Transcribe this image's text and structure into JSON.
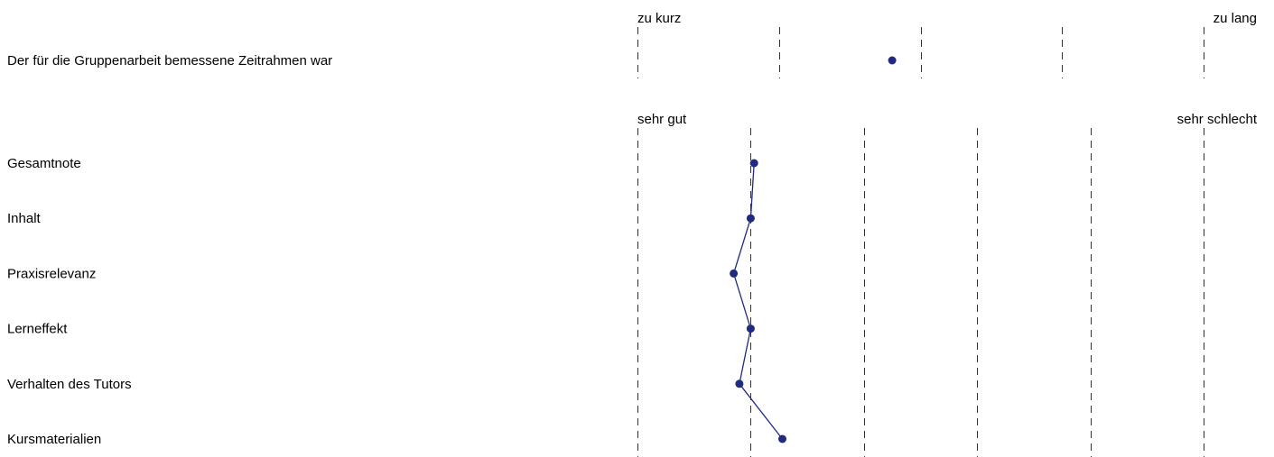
{
  "colors": {
    "marker": "#1f2a80",
    "line": "#1f2a80",
    "grid": "#333333",
    "text": "#000000"
  },
  "chart_data": [
    {
      "type": "scatter",
      "title": "",
      "scale_left": "zu kurz",
      "scale_right": "zu lang",
      "xlim": [
        1,
        5
      ],
      "ticks": [
        1,
        2,
        3,
        4,
        5
      ],
      "grid": "dashed vertical",
      "items": [
        {
          "label": "Der für die Gruppenarbeit bemessene Zeitrahmen war",
          "value": 2.8
        }
      ],
      "connected": false
    },
    {
      "type": "line",
      "title": "",
      "scale_left": "sehr gut",
      "scale_right": "sehr schlecht",
      "xlim": [
        1,
        6
      ],
      "ticks": [
        1,
        2,
        3,
        4,
        5,
        6
      ],
      "grid": "dashed vertical",
      "items": [
        {
          "label": "Gesamtnote",
          "value": 2.03
        },
        {
          "label": "Inhalt",
          "value": 2.0
        },
        {
          "label": "Praxisrelevanz",
          "value": 1.85
        },
        {
          "label": "Lerneffekt",
          "value": 2.0
        },
        {
          "label": "Verhalten des Tutors",
          "value": 1.9
        },
        {
          "label": "Kursmaterialien",
          "value": 2.28
        }
      ],
      "connected": true
    }
  ]
}
